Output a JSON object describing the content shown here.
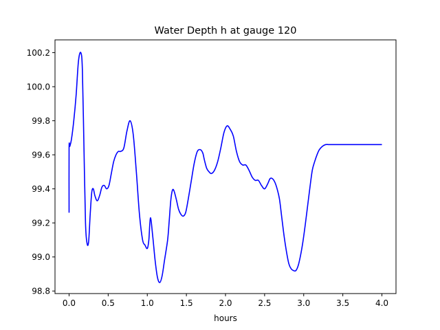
{
  "chart_data": {
    "type": "line",
    "title": "Water Depth h at gauge 120",
    "xlabel": "hours",
    "ylabel": "",
    "xlim": [
      -0.18,
      4.18
    ],
    "ylim": [
      98.785,
      100.275
    ],
    "xticks": [
      0.0,
      0.5,
      1.0,
      1.5,
      2.0,
      2.5,
      3.0,
      3.5,
      4.0
    ],
    "xtick_labels": [
      "0.0",
      "0.5",
      "1.0",
      "1.5",
      "2.0",
      "2.5",
      "3.0",
      "3.5",
      "4.0"
    ],
    "yticks": [
      98.8,
      99.0,
      99.2,
      99.4,
      99.6,
      99.8,
      100.0,
      100.2
    ],
    "ytick_labels": [
      "98.8",
      "99.0",
      "99.2",
      "99.4",
      "99.6",
      "99.8",
      "100.0",
      "100.2"
    ],
    "grid": false,
    "legend": "none",
    "series": [
      {
        "color": "#0000ff",
        "x": [
          0.0,
          0.0,
          0.01,
          0.03,
          0.06,
          0.09,
          0.12,
          0.15,
          0.17,
          0.19,
          0.21,
          0.23,
          0.25,
          0.27,
          0.29,
          0.31,
          0.33,
          0.36,
          0.39,
          0.42,
          0.45,
          0.48,
          0.51,
          0.54,
          0.57,
          0.6,
          0.63,
          0.66,
          0.7,
          0.74,
          0.78,
          0.82,
          0.86,
          0.9,
          0.94,
          0.97,
          1.0,
          1.02,
          1.04,
          1.07,
          1.1,
          1.13,
          1.16,
          1.19,
          1.22,
          1.26,
          1.28,
          1.3,
          1.32,
          1.34,
          1.37,
          1.4,
          1.43,
          1.46,
          1.49,
          1.52,
          1.56,
          1.6,
          1.64,
          1.68,
          1.71,
          1.73,
          1.76,
          1.79,
          1.82,
          1.86,
          1.9,
          1.94,
          1.98,
          2.02,
          2.06,
          2.1,
          2.14,
          2.18,
          2.22,
          2.26,
          2.3,
          2.34,
          2.38,
          2.42,
          2.46,
          2.5,
          2.54,
          2.57,
          2.6,
          2.63,
          2.66,
          2.69,
          2.72,
          2.75,
          2.78,
          2.81,
          2.84,
          2.87,
          2.9,
          2.93,
          2.96,
          2.99,
          3.02,
          3.05,
          3.08,
          3.11,
          3.14,
          3.17,
          3.2,
          3.24,
          3.28,
          3.32,
          3.36,
          3.4,
          3.44,
          3.48,
          3.52,
          3.56,
          3.6,
          3.64,
          3.68,
          3.72,
          3.76,
          3.8,
          3.85,
          3.9,
          3.95,
          4.0
        ],
        "y": [
          99.26,
          99.64,
          99.65,
          99.69,
          99.8,
          99.95,
          100.15,
          100.2,
          100.1,
          99.65,
          99.2,
          99.08,
          99.09,
          99.25,
          99.38,
          99.4,
          99.36,
          99.33,
          99.36,
          99.41,
          99.42,
          99.4,
          99.42,
          99.49,
          99.56,
          99.6,
          99.62,
          99.62,
          99.64,
          99.74,
          99.8,
          99.72,
          99.5,
          99.25,
          99.1,
          99.07,
          99.05,
          99.1,
          99.23,
          99.12,
          98.98,
          98.88,
          98.85,
          98.89,
          98.98,
          99.1,
          99.21,
          99.33,
          99.39,
          99.39,
          99.34,
          99.28,
          99.25,
          99.24,
          99.26,
          99.33,
          99.44,
          99.55,
          99.62,
          99.63,
          99.61,
          99.57,
          99.52,
          99.5,
          99.49,
          99.51,
          99.56,
          99.64,
          99.73,
          99.77,
          99.75,
          99.71,
          99.62,
          99.56,
          99.54,
          99.54,
          99.51,
          99.47,
          99.45,
          99.45,
          99.42,
          99.4,
          99.43,
          99.46,
          99.46,
          99.44,
          99.4,
          99.34,
          99.23,
          99.12,
          99.03,
          98.96,
          98.93,
          98.92,
          98.92,
          98.95,
          99.01,
          99.09,
          99.19,
          99.3,
          99.41,
          99.51,
          99.56,
          99.6,
          99.63,
          99.65,
          99.66,
          99.66,
          99.66,
          99.66,
          99.66,
          99.66,
          99.66,
          99.66,
          99.66,
          99.66,
          99.66,
          99.66,
          99.66,
          99.66,
          99.66,
          99.66,
          99.66,
          99.66
        ]
      }
    ]
  }
}
